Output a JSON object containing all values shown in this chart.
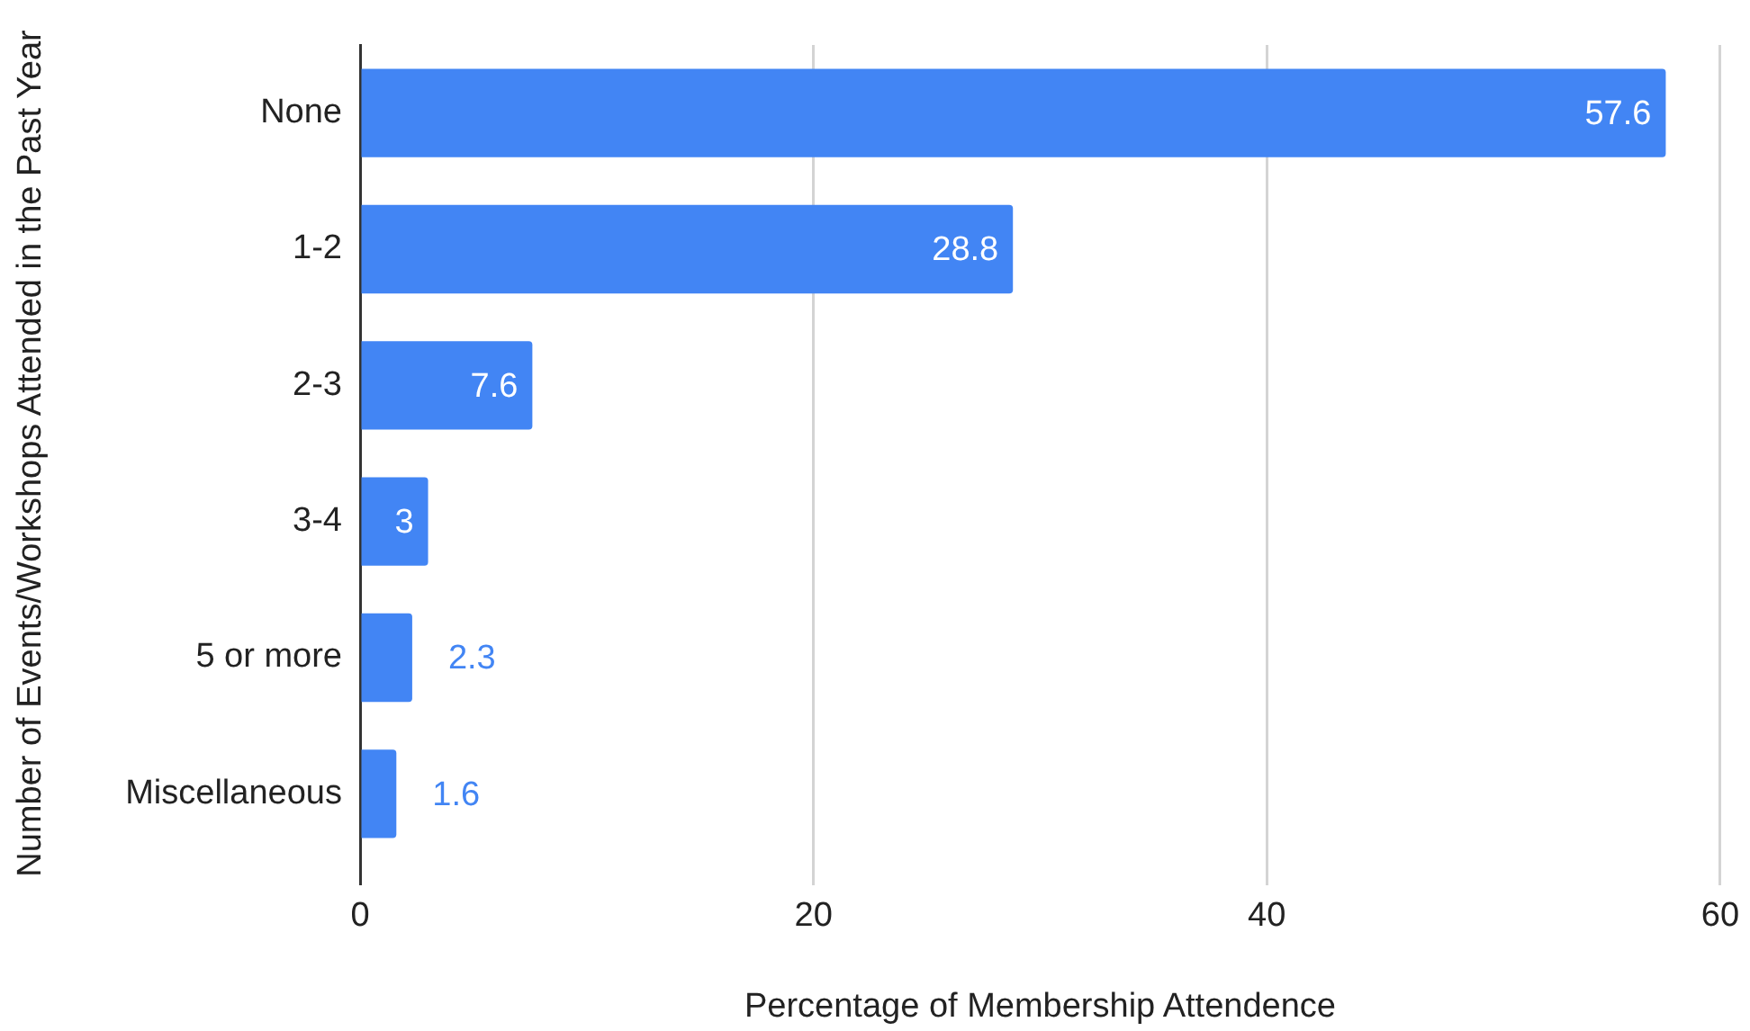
{
  "chart_data": {
    "type": "bar",
    "orientation": "horizontal",
    "categories": [
      "None",
      "1-2",
      "2-3",
      "3-4",
      "5 or more",
      "Miscellaneous"
    ],
    "values": [
      57.6,
      28.8,
      7.6,
      3,
      2.3,
      1.6
    ],
    "color": "#4285f4",
    "xlabel": "Percentage of Membership Attendence",
    "ylabel": "Number of Events/Workshops Attended in the Past Year",
    "xlim": [
      0,
      60
    ],
    "xticks": [
      0,
      20,
      40,
      60
    ],
    "grid": "x",
    "data_labels": true
  }
}
